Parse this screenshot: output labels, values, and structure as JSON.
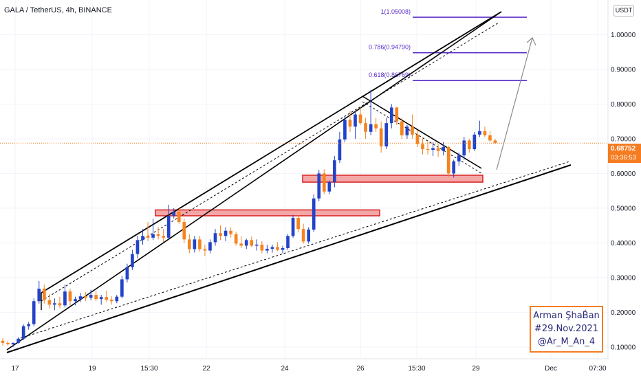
{
  "title": "GALA / TetherUS, 4h, BINANCE",
  "currency_badge": "USDT",
  "current_price": "0.68752",
  "countdown": "03:36:53",
  "watermark": {
    "line1": "Arman ŞhaḂan",
    "line2": "#29.Nov.2021",
    "line3": "@Ar_M_An_4"
  },
  "colors": {
    "bull": "#2343c8",
    "bear": "#f5831f",
    "fib": "#5b2fc9",
    "zone_fill": "#f4a7a7",
    "zone_border": "#d81b1b",
    "trend": "#000000",
    "projection": "#8a8a8a",
    "price_line": "#f57c21",
    "grid": "#f0f3fa"
  },
  "chart_data": {
    "type": "candlestick",
    "x_tick_labels": [
      "17",
      "19",
      "15:30",
      "22",
      "24",
      "26",
      "15:30",
      "29",
      "Dec",
      "07:30"
    ],
    "y_tick_labels": [
      "0.10000",
      "0.20000",
      "0.30000",
      "0.40000",
      "0.50000",
      "0.60000",
      "0.70000",
      "0.80000",
      "0.90000",
      "1.00000"
    ],
    "ylim": [
      0.08,
      1.08
    ],
    "grid": true,
    "fib_levels": [
      {
        "label": "1(1.05008)",
        "value": 1.05008
      },
      {
        "label": "0.786(0.94790)",
        "value": 0.9479
      },
      {
        "label": "0.618(0.86769)",
        "value": 0.86769
      }
    ],
    "support_zones": [
      {
        "low": 0.575,
        "high": 0.595
      },
      {
        "low": 0.478,
        "high": 0.495
      }
    ],
    "candles": [
      [
        0.118,
        0.125,
        0.104,
        0.112
      ],
      [
        0.112,
        0.118,
        0.104,
        0.108
      ],
      [
        0.108,
        0.113,
        0.1,
        0.112
      ],
      [
        0.112,
        0.128,
        0.11,
        0.124
      ],
      [
        0.124,
        0.165,
        0.12,
        0.16
      ],
      [
        0.16,
        0.172,
        0.15,
        0.166
      ],
      [
        0.166,
        0.24,
        0.16,
        0.232
      ],
      [
        0.232,
        0.29,
        0.225,
        0.268
      ],
      [
        0.268,
        0.28,
        0.225,
        0.235
      ],
      [
        0.235,
        0.252,
        0.21,
        0.222
      ],
      [
        0.222,
        0.24,
        0.206,
        0.226
      ],
      [
        0.226,
        0.245,
        0.212,
        0.22
      ],
      [
        0.22,
        0.28,
        0.214,
        0.26
      ],
      [
        0.26,
        0.268,
        0.22,
        0.232
      ],
      [
        0.232,
        0.245,
        0.22,
        0.238
      ],
      [
        0.238,
        0.256,
        0.23,
        0.246
      ],
      [
        0.246,
        0.258,
        0.232,
        0.242
      ],
      [
        0.242,
        0.265,
        0.235,
        0.25
      ],
      [
        0.25,
        0.262,
        0.232,
        0.238
      ],
      [
        0.238,
        0.25,
        0.222,
        0.244
      ],
      [
        0.244,
        0.262,
        0.23,
        0.236
      ],
      [
        0.236,
        0.246,
        0.222,
        0.232
      ],
      [
        0.232,
        0.25,
        0.226,
        0.245
      ],
      [
        0.245,
        0.305,
        0.24,
        0.295
      ],
      [
        0.295,
        0.34,
        0.286,
        0.33
      ],
      [
        0.33,
        0.38,
        0.322,
        0.368
      ],
      [
        0.368,
        0.42,
        0.355,
        0.408
      ],
      [
        0.408,
        0.44,
        0.395,
        0.42
      ],
      [
        0.42,
        0.46,
        0.405,
        0.415
      ],
      [
        0.415,
        0.47,
        0.408,
        0.425
      ],
      [
        0.425,
        0.445,
        0.41,
        0.42
      ],
      [
        0.42,
        0.44,
        0.402,
        0.415
      ],
      [
        0.415,
        0.51,
        0.41,
        0.478
      ],
      [
        0.478,
        0.5,
        0.47,
        0.49
      ],
      [
        0.49,
        0.5,
        0.455,
        0.46
      ],
      [
        0.46,
        0.47,
        0.4,
        0.41
      ],
      [
        0.41,
        0.425,
        0.37,
        0.382
      ],
      [
        0.382,
        0.42,
        0.372,
        0.41
      ],
      [
        0.41,
        0.42,
        0.375,
        0.382
      ],
      [
        0.382,
        0.395,
        0.362,
        0.378
      ],
      [
        0.378,
        0.41,
        0.37,
        0.402
      ],
      [
        0.402,
        0.44,
        0.392,
        0.428
      ],
      [
        0.428,
        0.45,
        0.408,
        0.42
      ],
      [
        0.42,
        0.445,
        0.405,
        0.435
      ],
      [
        0.435,
        0.445,
        0.415,
        0.425
      ],
      [
        0.425,
        0.432,
        0.392,
        0.398
      ],
      [
        0.398,
        0.42,
        0.385,
        0.392
      ],
      [
        0.392,
        0.412,
        0.382,
        0.408
      ],
      [
        0.408,
        0.418,
        0.388,
        0.392
      ],
      [
        0.392,
        0.41,
        0.378,
        0.395
      ],
      [
        0.395,
        0.405,
        0.37,
        0.378
      ],
      [
        0.378,
        0.395,
        0.37,
        0.383
      ],
      [
        0.383,
        0.395,
        0.372,
        0.388
      ],
      [
        0.388,
        0.402,
        0.376,
        0.38
      ],
      [
        0.38,
        0.392,
        0.37,
        0.385
      ],
      [
        0.385,
        0.425,
        0.38,
        0.42
      ],
      [
        0.42,
        0.48,
        0.415,
        0.472
      ],
      [
        0.472,
        0.48,
        0.43,
        0.44
      ],
      [
        0.44,
        0.455,
        0.398,
        0.404
      ],
      [
        0.404,
        0.445,
        0.398,
        0.438
      ],
      [
        0.438,
        0.54,
        0.432,
        0.528
      ],
      [
        0.528,
        0.61,
        0.52,
        0.6
      ],
      [
        0.6,
        0.612,
        0.54,
        0.548
      ],
      [
        0.548,
        0.58,
        0.54,
        0.575
      ],
      [
        0.575,
        0.65,
        0.56,
        0.638
      ],
      [
        0.638,
        0.72,
        0.63,
        0.698
      ],
      [
        0.698,
        0.765,
        0.69,
        0.755
      ],
      [
        0.755,
        0.78,
        0.72,
        0.735
      ],
      [
        0.735,
        0.78,
        0.7,
        0.77
      ],
      [
        0.77,
        0.79,
        0.74,
        0.745
      ],
      [
        0.745,
        0.76,
        0.7,
        0.72
      ],
      [
        0.72,
        0.84,
        0.71,
        0.742
      ],
      [
        0.742,
        0.76,
        0.72,
        0.73
      ],
      [
        0.73,
        0.75,
        0.66,
        0.678
      ],
      [
        0.678,
        0.76,
        0.67,
        0.745
      ],
      [
        0.745,
        0.8,
        0.73,
        0.79
      ],
      [
        0.79,
        0.792,
        0.74,
        0.75
      ],
      [
        0.75,
        0.76,
        0.7,
        0.71
      ],
      [
        0.71,
        0.74,
        0.7,
        0.735
      ],
      [
        0.735,
        0.77,
        0.7,
        0.712
      ],
      [
        0.712,
        0.725,
        0.676,
        0.685
      ],
      [
        0.685,
        0.7,
        0.655,
        0.67
      ],
      [
        0.67,
        0.69,
        0.655,
        0.668
      ],
      [
        0.668,
        0.69,
        0.65,
        0.673
      ],
      [
        0.673,
        0.685,
        0.648,
        0.665
      ],
      [
        0.665,
        0.69,
        0.652,
        0.676
      ],
      [
        0.676,
        0.68,
        0.59,
        0.6
      ],
      [
        0.6,
        0.64,
        0.588,
        0.635
      ],
      [
        0.635,
        0.66,
        0.622,
        0.652
      ],
      [
        0.652,
        0.705,
        0.64,
        0.695
      ],
      [
        0.695,
        0.7,
        0.66,
        0.67
      ],
      [
        0.67,
        0.72,
        0.665,
        0.712
      ],
      [
        0.712,
        0.752,
        0.705,
        0.722
      ],
      [
        0.722,
        0.735,
        0.705,
        0.71
      ],
      [
        0.71,
        0.722,
        0.69,
        0.695
      ],
      [
        0.695,
        0.7,
        0.685,
        0.688
      ]
    ]
  }
}
